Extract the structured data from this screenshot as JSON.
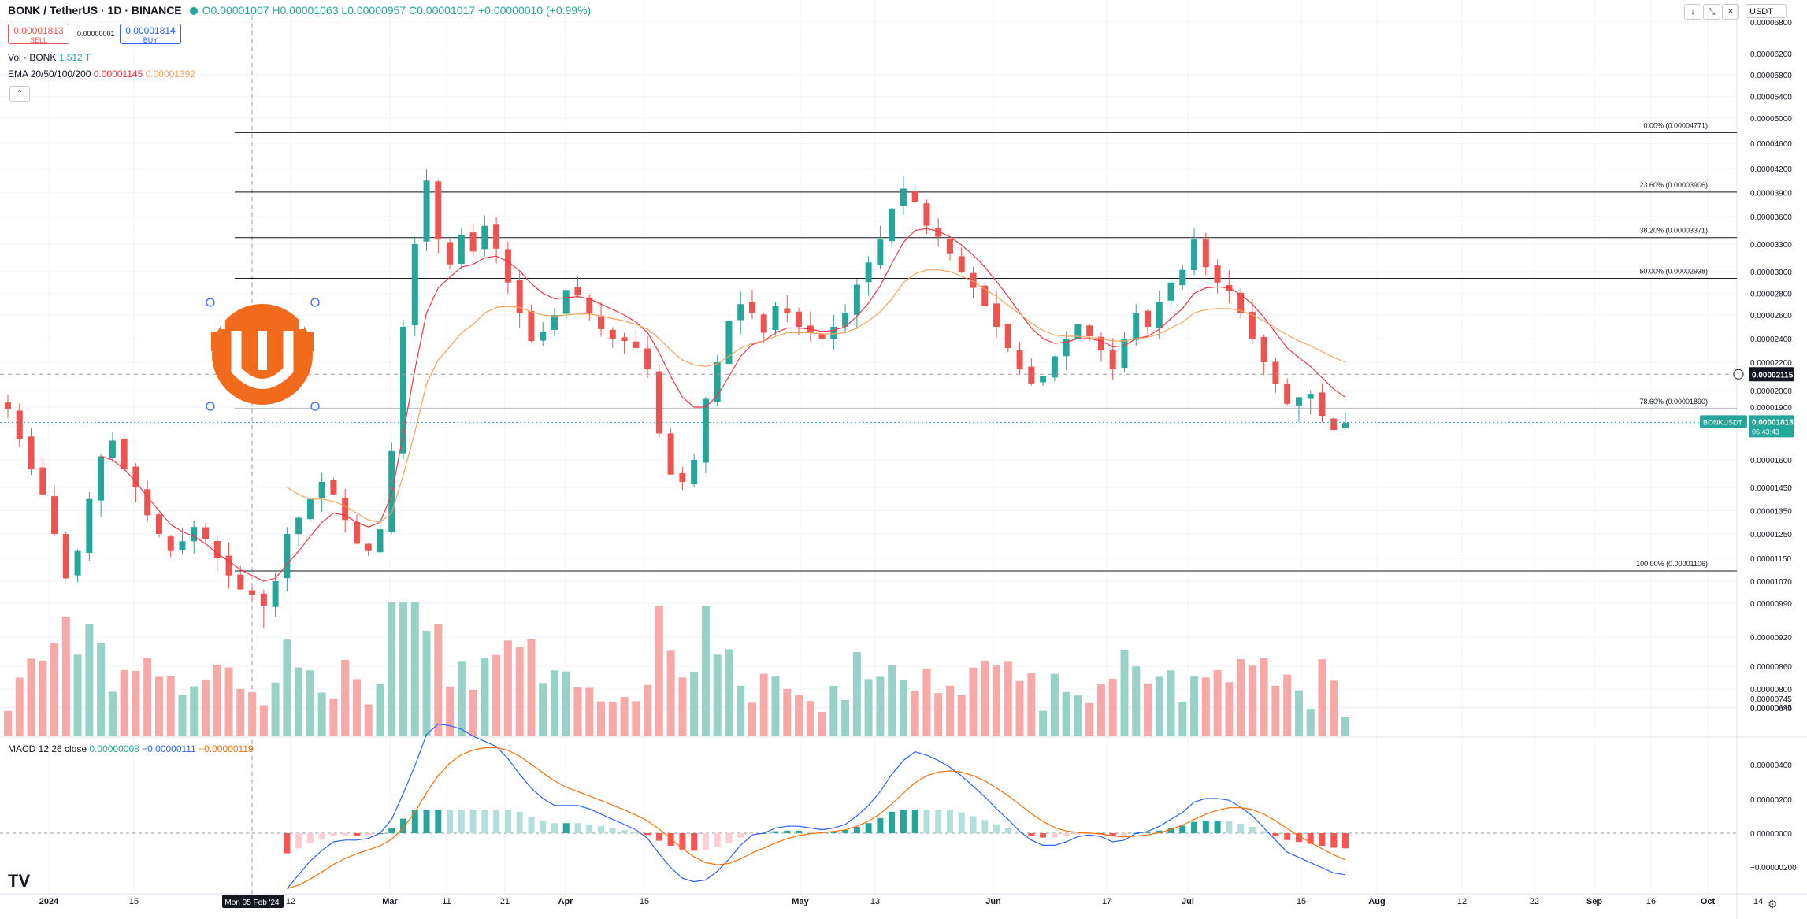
{
  "header": {
    "symbol": "BONK / TetherUS · 1D · BINANCE",
    "ohlc": "O0.00001007 H0.00001063 L0.00000957 C0.00001017 +0.00000010 (+0.99%)"
  },
  "trade": {
    "sell_price": "0.00001813",
    "sell_label": "SELL",
    "spread": "0.00000001",
    "buy_price": "0.00001814",
    "buy_label": "BUY"
  },
  "indicators": {
    "vol_label": "Vol · BONK",
    "vol_value": "1.512 T",
    "ema_label": "EMA 20/50/100/200",
    "ema_val1": "0.00001145",
    "ema_val2": "0.00001392",
    "macd_label": "MACD 12 26 close",
    "macd_hist": "0.00000008",
    "macd_line": "−0.00000111",
    "macd_signal": "−0.00000119"
  },
  "toolbar": {
    "collapse": "⌃",
    "down": "↓",
    "expand": "⤡",
    "close": "✕",
    "currency": "USDT"
  },
  "colors": {
    "up": "#26a69a",
    "down": "#ef5350",
    "ema_fast": "#f23645",
    "ema_slow": "#f7a35c",
    "macd": "#2962ff",
    "signal": "#ff6d00",
    "fib": "#131722"
  },
  "chart_data": {
    "type": "candlestick",
    "price_axis_ticks": [
      "0.00006800",
      "0.00006200",
      "0.00005800",
      "0.00005400",
      "0.00005000",
      "0.00004600",
      "0.00004200",
      "0.00003900",
      "0.00003600",
      "0.00003300",
      "0.00003000",
      "0.00002800",
      "0.00002600",
      "0.00002400",
      "0.00002200",
      "0.00002000",
      "0.00001900",
      "0.00001600",
      "0.00001450",
      "0.00001350",
      "0.00001250",
      "0.00001150",
      "0.00001070",
      "0.00000990",
      "0.00000920",
      "0.00000860",
      "0.00000800",
      "0.00000745",
      "0.00000695",
      "0.00000649"
    ],
    "macd_axis_ticks": [
      "0.00000400",
      "0.00000200",
      "0.00000000",
      "−0.00000200"
    ],
    "time_axis": [
      "2024",
      "15",
      "Mon 05 Feb '24",
      "12",
      "Mar",
      "11",
      "21",
      "Apr",
      "15",
      "May",
      "13",
      "Jun",
      "17",
      "Jul",
      "15",
      "Aug",
      "12",
      "22",
      "Sep",
      "16",
      "Oct",
      "14"
    ],
    "fib_levels": [
      {
        "label": "0.00% (0.00004771)",
        "value": 4.771e-05
      },
      {
        "label": "23.60% (0.00003906)",
        "value": 3.906e-05
      },
      {
        "label": "38.20% (0.00003371)",
        "value": 3.371e-05
      },
      {
        "label": "50.00% (0.00002938)",
        "value": 2.938e-05
      },
      {
        "label": "78.60% (0.00001890)",
        "value": 1.89e-05
      },
      {
        "label": "100.00% (0.00001106)",
        "value": 1.106e-05
      }
    ],
    "last_price": {
      "symbol": "BONKUSDT",
      "value": "0.00001813",
      "countdown": "06:43:43"
    },
    "crosshair_price": "0.00002115",
    "close_path": [
      1.89e-05,
      1.72e-05,
      1.55e-05,
      1.42e-05,
      1.25e-05,
      1.08e-05,
      1.18e-05,
      1.4e-05,
      1.62e-05,
      1.71e-05,
      1.55e-05,
      1.45e-05,
      1.33e-05,
      1.25e-05,
      1.18e-05,
      1.22e-05,
      1.28e-05,
      1.23e-05,
      1.15e-05,
      1.09e-05,
      1.04e-05,
      1.02e-05,
      9.85e-06,
      1.07e-05,
      1.25e-05,
      1.32e-05,
      1.4e-05,
      1.48e-05,
      1.42e-05,
      1.31e-05,
      1.21e-05,
      1.18e-05,
      1.27e-05,
      1.65e-05,
      2.5e-05,
      3.3e-05,
      4.05e-05,
      3.35e-05,
      3.08e-05,
      3.4e-05,
      3.22e-05,
      3.5e-05,
      3.25e-05,
      2.9e-05,
      2.62e-05,
      2.38e-05,
      2.46e-05,
      2.6e-05,
      2.83e-05,
      2.78e-05,
      2.62e-05,
      2.48e-05,
      2.4e-05,
      2.38e-05,
      2.32e-05,
      2.15e-05,
      1.75e-05,
      1.52e-05,
      1.48e-05,
      1.6e-05,
      1.95e-05,
      2.2e-05,
      2.55e-05,
      2.7e-05,
      2.62e-05,
      2.45e-05,
      2.68e-05,
      2.62e-05,
      2.5e-05,
      2.45e-05,
      2.4e-05,
      2.5e-05,
      2.62e-05,
      2.88e-05,
      3.1e-05,
      3.35e-05,
      3.7e-05,
      3.95e-05,
      3.78e-05,
      3.5e-05,
      3.38e-05,
      3.2e-05,
      3e-05,
      2.85e-05,
      2.68e-05,
      2.5e-05,
      2.32e-05,
      2.15e-05,
      2.05e-05,
      2.1e-05,
      2.25e-05,
      2.4e-05,
      2.52e-05,
      2.42e-05,
      2.3e-05,
      2.15e-05,
      2.4e-05,
      2.62e-05,
      2.5e-05,
      2.72e-05,
      2.9e-05,
      3.02e-05,
      3.35e-05,
      3.05e-05,
      2.9e-05,
      2.82e-05,
      2.62e-05,
      2.4e-05,
      2.2e-05,
      2.05e-05,
      1.92e-05,
      1.96e-05,
      1.98e-05,
      1.85e-05,
      1.77e-05,
      1.81e-05
    ],
    "ema_fast": [
      null,
      null,
      null,
      null,
      null,
      null,
      null,
      null,
      1.62e-05,
      1.6e-05,
      1.55e-05,
      1.48e-05,
      1.41e-05,
      1.35e-05,
      1.29e-05,
      1.26e-05,
      1.24e-05,
      1.21e-05,
      1.17e-05,
      1.14e-05,
      1.11e-05,
      1.09e-05,
      1.07e-05,
      1.08e-05,
      1.13e-05,
      1.18e-05,
      1.24e-05,
      1.3e-05,
      1.34e-05,
      1.33e-05,
      1.3e-05,
      1.28e-05,
      1.3e-05,
      1.42e-05,
      1.75e-05,
      2.15e-05,
      2.62e-05,
      2.85e-05,
      2.95e-05,
      3.05e-05,
      3.08e-05,
      3.15e-05,
      3.17e-05,
      3.11e-05,
      3.01e-05,
      2.89e-05,
      2.8e-05,
      2.75e-05,
      2.76e-05,
      2.77e-05,
      2.75e-05,
      2.7e-05,
      2.65e-05,
      2.6e-05,
      2.54e-05,
      2.45e-05,
      2.28e-05,
      2.1e-05,
      1.96e-05,
      1.9e-05,
      1.9e-05,
      1.97e-05,
      2.1e-05,
      2.25e-05,
      2.35e-05,
      2.38e-05,
      2.45e-05,
      2.49e-05,
      2.49e-05,
      2.48e-05,
      2.46e-05,
      2.47e-05,
      2.5e-05,
      2.59e-05,
      2.71e-05,
      2.87e-05,
      3.09e-05,
      3.32e-05,
      3.45e-05,
      3.47e-05,
      3.44e-05,
      3.38e-05,
      3.29e-05,
      3.18e-05,
      3.05e-05,
      2.91e-05,
      2.77e-05,
      2.62e-05,
      2.49e-05,
      2.4e-05,
      2.36e-05,
      2.37e-05,
      2.4e-05,
      2.4e-05,
      2.38e-05,
      2.33e-05,
      2.34e-05,
      2.4e-05,
      2.42e-05,
      2.48e-05,
      2.57e-05,
      2.66e-05,
      2.8e-05,
      2.85e-05,
      2.86e-05,
      2.85e-05,
      2.79e-05,
      2.7e-05,
      2.58e-05,
      2.45e-05,
      2.32e-05,
      2.24e-05,
      2.17e-05,
      2.09e-05,
      2.01e-05,
      1.96e-05
    ],
    "ema_slow": [
      null,
      null,
      null,
      null,
      null,
      null,
      null,
      null,
      null,
      null,
      null,
      null,
      null,
      null,
      null,
      null,
      null,
      null,
      null,
      null,
      null,
      null,
      null,
      null,
      1.45e-05,
      1.42e-05,
      1.4e-05,
      1.4e-05,
      1.39e-05,
      1.37e-05,
      1.34e-05,
      1.31e-05,
      1.3e-05,
      1.34e-05,
      1.52e-05,
      1.76e-05,
      2.05e-05,
      2.22e-05,
      2.33e-05,
      2.45e-05,
      2.52e-05,
      2.62e-05,
      2.67e-05,
      2.68e-05,
      2.67e-05,
      2.63e-05,
      2.6e-05,
      2.59e-05,
      2.6e-05,
      2.61e-05,
      2.61e-05,
      2.59e-05,
      2.57e-05,
      2.55e-05,
      2.52e-05,
      2.48e-05,
      2.4e-05,
      2.3e-05,
      2.22e-05,
      2.18e-05,
      2.17e-05,
      2.19e-05,
      2.25e-05,
      2.32e-05,
      2.36e-05,
      2.38e-05,
      2.42e-05,
      2.45e-05,
      2.45e-05,
      2.45e-05,
      2.44e-05,
      2.44e-05,
      2.45e-05,
      2.49e-05,
      2.55e-05,
      2.63e-05,
      2.75e-05,
      2.9e-05,
      2.98e-05,
      3.02e-05,
      3.02e-05,
      3e-05,
      2.96e-05,
      2.91e-05,
      2.84e-05,
      2.77e-05,
      2.69e-05,
      2.61e-05,
      2.53e-05,
      2.47e-05,
      2.43e-05,
      2.42e-05,
      2.42e-05,
      2.41e-05,
      2.4e-05,
      2.38e-05,
      2.38e-05,
      2.4e-05,
      2.41e-05,
      2.44e-05,
      2.49e-05,
      2.54e-05,
      2.62e-05,
      2.65e-05,
      2.66e-05,
      2.66e-05,
      2.64e-05,
      2.6e-05,
      2.55e-05,
      2.49e-05,
      2.43e-05,
      2.38e-05,
      2.34e-05,
      2.29e-05,
      2.24e-05,
      2.2e-05
    ]
  }
}
